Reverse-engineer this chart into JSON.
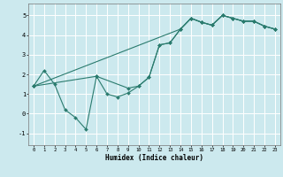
{
  "xlabel": "Humidex (Indice chaleur)",
  "bg_color": "#cce9ee",
  "grid_color": "#ffffff",
  "line_color": "#2a7b6e",
  "xlim": [
    -0.5,
    23.5
  ],
  "ylim": [
    -1.6,
    5.6
  ],
  "xticks": [
    0,
    1,
    2,
    3,
    4,
    5,
    6,
    7,
    8,
    9,
    10,
    11,
    12,
    13,
    14,
    15,
    16,
    17,
    18,
    19,
    20,
    21,
    22,
    23
  ],
  "yticks": [
    -1,
    0,
    1,
    2,
    3,
    4,
    5
  ],
  "series1_x": [
    0,
    1,
    2,
    3,
    4,
    5,
    6,
    7,
    8,
    9,
    10,
    11,
    12,
    13,
    14,
    15,
    16,
    17,
    18,
    19,
    20,
    21,
    22,
    23
  ],
  "series1_y": [
    1.4,
    2.2,
    1.5,
    0.2,
    -0.2,
    -0.8,
    1.9,
    1.0,
    0.85,
    1.05,
    1.4,
    1.85,
    3.5,
    3.6,
    4.3,
    4.85,
    4.65,
    4.5,
    5.0,
    4.85,
    4.7,
    4.7,
    4.45,
    4.3
  ],
  "series2_x": [
    0,
    6,
    9,
    10,
    11,
    12,
    13,
    14,
    15,
    16,
    17,
    18,
    19,
    20,
    21,
    22,
    23
  ],
  "series2_y": [
    1.4,
    1.9,
    1.3,
    1.4,
    1.85,
    3.5,
    3.6,
    4.3,
    4.85,
    4.65,
    4.5,
    5.0,
    4.85,
    4.7,
    4.7,
    4.45,
    4.3
  ],
  "series3_x": [
    0,
    14,
    15,
    16,
    17,
    18,
    19,
    20,
    21,
    22,
    23
  ],
  "series3_y": [
    1.4,
    4.3,
    4.85,
    4.65,
    4.5,
    5.0,
    4.85,
    4.7,
    4.7,
    4.45,
    4.3
  ]
}
